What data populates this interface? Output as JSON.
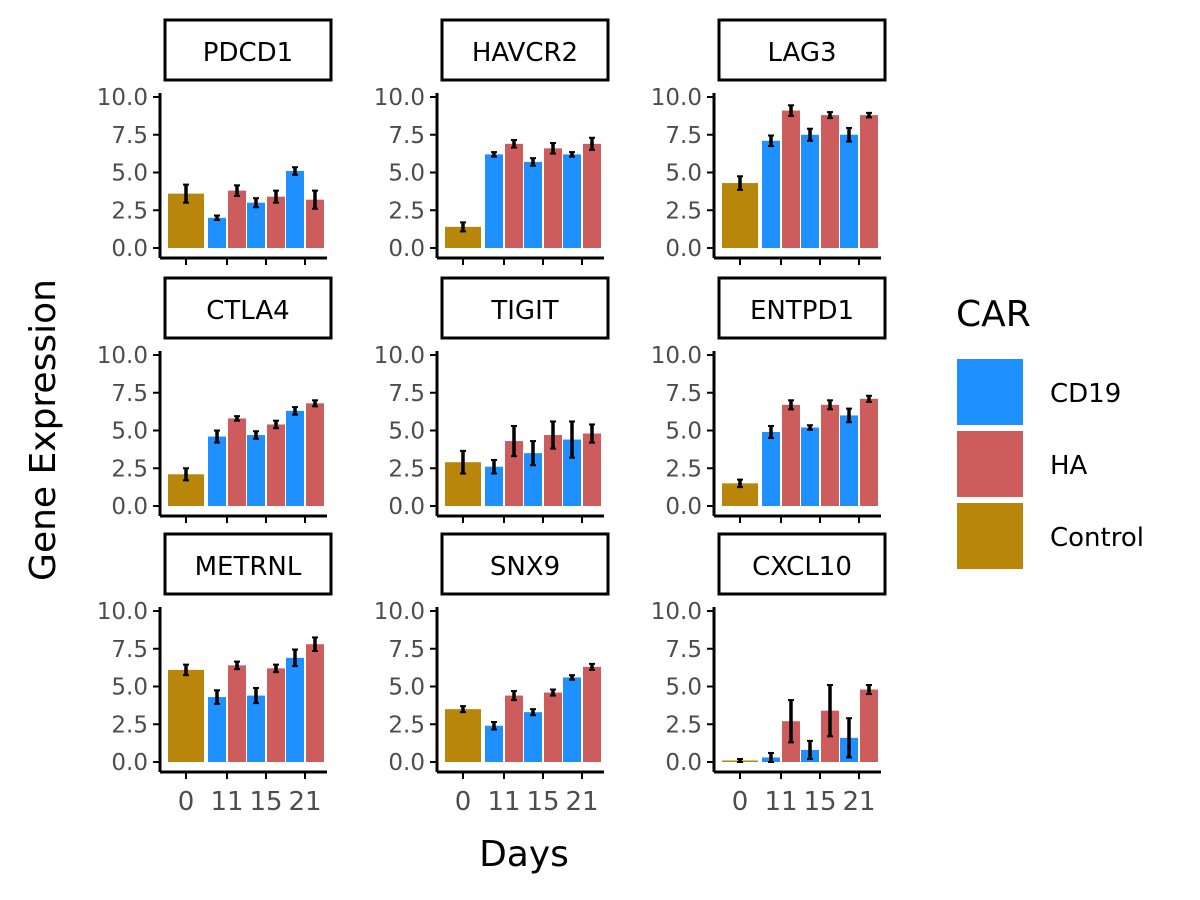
{
  "chart_data": {
    "type": "bar",
    "facet_layout": "3x3 grid",
    "xlabel": "Days",
    "ylabel": "Gene Expression",
    "x_ticks": [
      "0",
      "11",
      "15",
      "21"
    ],
    "y_ticks": [
      "0.0",
      "2.5",
      "5.0",
      "7.5",
      "10.0"
    ],
    "ylim": [
      0,
      10
    ],
    "error_bars": true,
    "grid": false,
    "legend": {
      "title": "CAR",
      "placement": "right",
      "entries": [
        {
          "name": "CD19",
          "color": "#1E90FF"
        },
        {
          "name": "HA",
          "color": "#CD5C5C"
        },
        {
          "name": "Control",
          "color": "#B8860B"
        }
      ]
    },
    "panels": [
      {
        "title": "PDCD1",
        "bars": [
          {
            "day": "0",
            "group": "Control",
            "value": 3.6,
            "err": 0.6
          },
          {
            "day": "11",
            "group": "CD19",
            "value": 2.0,
            "err": 0.15
          },
          {
            "day": "11",
            "group": "HA",
            "value": 3.8,
            "err": 0.35
          },
          {
            "day": "15",
            "group": "CD19",
            "value": 3.0,
            "err": 0.3
          },
          {
            "day": "15",
            "group": "HA",
            "value": 3.4,
            "err": 0.4
          },
          {
            "day": "21",
            "group": "CD19",
            "value": 5.1,
            "err": 0.25
          },
          {
            "day": "21",
            "group": "HA",
            "value": 3.2,
            "err": 0.6
          }
        ]
      },
      {
        "title": "HAVCR2",
        "bars": [
          {
            "day": "0",
            "group": "Control",
            "value": 1.4,
            "err": 0.3
          },
          {
            "day": "11",
            "group": "CD19",
            "value": 6.2,
            "err": 0.15
          },
          {
            "day": "11",
            "group": "HA",
            "value": 6.9,
            "err": 0.25
          },
          {
            "day": "15",
            "group": "CD19",
            "value": 5.7,
            "err": 0.25
          },
          {
            "day": "15",
            "group": "HA",
            "value": 6.6,
            "err": 0.35
          },
          {
            "day": "21",
            "group": "CD19",
            "value": 6.2,
            "err": 0.15
          },
          {
            "day": "21",
            "group": "HA",
            "value": 6.9,
            "err": 0.4
          }
        ]
      },
      {
        "title": "LAG3",
        "bars": [
          {
            "day": "0",
            "group": "Control",
            "value": 4.3,
            "err": 0.45
          },
          {
            "day": "11",
            "group": "CD19",
            "value": 7.1,
            "err": 0.35
          },
          {
            "day": "11",
            "group": "HA",
            "value": 9.1,
            "err": 0.35
          },
          {
            "day": "15",
            "group": "CD19",
            "value": 7.5,
            "err": 0.4
          },
          {
            "day": "15",
            "group": "HA",
            "value": 8.8,
            "err": 0.2
          },
          {
            "day": "21",
            "group": "CD19",
            "value": 7.5,
            "err": 0.45
          },
          {
            "day": "21",
            "group": "HA",
            "value": 8.8,
            "err": 0.15
          }
        ]
      },
      {
        "title": "CTLA4",
        "bars": [
          {
            "day": "0",
            "group": "Control",
            "value": 2.1,
            "err": 0.4
          },
          {
            "day": "11",
            "group": "CD19",
            "value": 4.6,
            "err": 0.4
          },
          {
            "day": "11",
            "group": "HA",
            "value": 5.8,
            "err": 0.15
          },
          {
            "day": "15",
            "group": "CD19",
            "value": 4.7,
            "err": 0.25
          },
          {
            "day": "15",
            "group": "HA",
            "value": 5.4,
            "err": 0.25
          },
          {
            "day": "21",
            "group": "CD19",
            "value": 6.3,
            "err": 0.25
          },
          {
            "day": "21",
            "group": "HA",
            "value": 6.8,
            "err": 0.2
          }
        ]
      },
      {
        "title": "TIGIT",
        "bars": [
          {
            "day": "0",
            "group": "Control",
            "value": 2.9,
            "err": 0.75
          },
          {
            "day": "11",
            "group": "CD19",
            "value": 2.6,
            "err": 0.45
          },
          {
            "day": "11",
            "group": "HA",
            "value": 4.3,
            "err": 1.0
          },
          {
            "day": "15",
            "group": "CD19",
            "value": 3.5,
            "err": 0.8
          },
          {
            "day": "15",
            "group": "HA",
            "value": 4.7,
            "err": 0.9
          },
          {
            "day": "21",
            "group": "CD19",
            "value": 4.4,
            "err": 1.2
          },
          {
            "day": "21",
            "group": "HA",
            "value": 4.8,
            "err": 0.6
          }
        ]
      },
      {
        "title": "ENTPD1",
        "bars": [
          {
            "day": "0",
            "group": "Control",
            "value": 1.5,
            "err": 0.25
          },
          {
            "day": "11",
            "group": "CD19",
            "value": 4.9,
            "err": 0.4
          },
          {
            "day": "11",
            "group": "HA",
            "value": 6.7,
            "err": 0.3
          },
          {
            "day": "15",
            "group": "CD19",
            "value": 5.2,
            "err": 0.15
          },
          {
            "day": "15",
            "group": "HA",
            "value": 6.7,
            "err": 0.3
          },
          {
            "day": "21",
            "group": "CD19",
            "value": 6.0,
            "err": 0.45
          },
          {
            "day": "21",
            "group": "HA",
            "value": 7.1,
            "err": 0.2
          }
        ]
      },
      {
        "title": "METRNL",
        "bars": [
          {
            "day": "0",
            "group": "Control",
            "value": 6.1,
            "err": 0.35
          },
          {
            "day": "11",
            "group": "CD19",
            "value": 4.3,
            "err": 0.45
          },
          {
            "day": "11",
            "group": "HA",
            "value": 6.4,
            "err": 0.25
          },
          {
            "day": "15",
            "group": "CD19",
            "value": 4.4,
            "err": 0.5
          },
          {
            "day": "15",
            "group": "HA",
            "value": 6.2,
            "err": 0.25
          },
          {
            "day": "21",
            "group": "CD19",
            "value": 6.9,
            "err": 0.55
          },
          {
            "day": "21",
            "group": "HA",
            "value": 7.8,
            "err": 0.45
          }
        ]
      },
      {
        "title": "SNX9",
        "bars": [
          {
            "day": "0",
            "group": "Control",
            "value": 3.5,
            "err": 0.2
          },
          {
            "day": "11",
            "group": "CD19",
            "value": 2.4,
            "err": 0.25
          },
          {
            "day": "11",
            "group": "HA",
            "value": 4.4,
            "err": 0.3
          },
          {
            "day": "15",
            "group": "CD19",
            "value": 3.3,
            "err": 0.2
          },
          {
            "day": "15",
            "group": "HA",
            "value": 4.6,
            "err": 0.2
          },
          {
            "day": "21",
            "group": "CD19",
            "value": 5.6,
            "err": 0.15
          },
          {
            "day": "21",
            "group": "HA",
            "value": 6.3,
            "err": 0.2
          }
        ]
      },
      {
        "title": "CXCL10",
        "bars": [
          {
            "day": "0",
            "group": "Control",
            "value": 0.1,
            "err": 0.1
          },
          {
            "day": "11",
            "group": "CD19",
            "value": 0.3,
            "err": 0.3
          },
          {
            "day": "11",
            "group": "HA",
            "value": 2.7,
            "err": 1.4
          },
          {
            "day": "15",
            "group": "CD19",
            "value": 0.8,
            "err": 0.6
          },
          {
            "day": "15",
            "group": "HA",
            "value": 3.4,
            "err": 1.7
          },
          {
            "day": "21",
            "group": "CD19",
            "value": 1.6,
            "err": 1.3
          },
          {
            "day": "21",
            "group": "HA",
            "value": 4.8,
            "err": 0.3
          }
        ]
      }
    ]
  }
}
